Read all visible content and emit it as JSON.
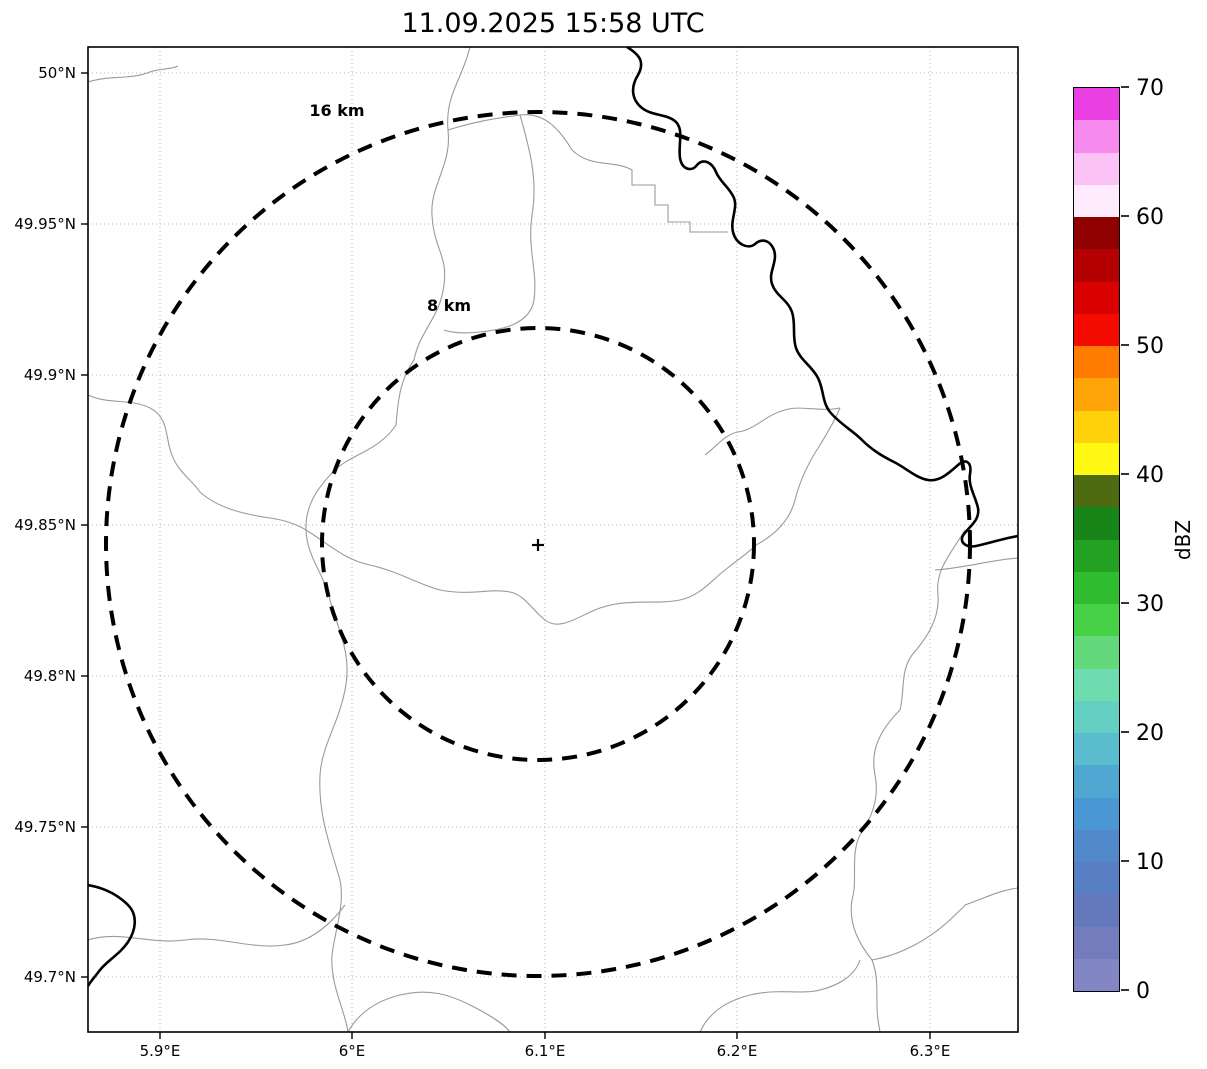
{
  "title": "11.09.2025 15:58 UTC",
  "axes": {
    "y_ticks": [
      "50°N",
      "49.95°N",
      "49.9°N",
      "49.85°N",
      "49.8°N",
      "49.75°N",
      "49.7°N"
    ],
    "x_ticks": [
      "5.9°E",
      "6°E",
      "6.1°E",
      "6.2°E",
      "6.3°E"
    ]
  },
  "range_rings": [
    {
      "label": "16 km",
      "radius_km": 16
    },
    {
      "label": "8 km",
      "radius_km": 8
    }
  ],
  "center_marker": "+",
  "colorbar": {
    "label": "dBZ",
    "range": [
      0,
      70
    ],
    "ticks_top_to_bottom": [
      "70",
      "60",
      "50",
      "40",
      "30",
      "20",
      "10",
      "0"
    ],
    "colors_bottom_to_top": [
      "#8286c4",
      "#747cbe",
      "#6478bc",
      "#587ec3",
      "#5189cb",
      "#4b97d3",
      "#50a8d2",
      "#5abccd",
      "#64d0c4",
      "#6edcae",
      "#63d97c",
      "#46d146",
      "#2fbc2f",
      "#23a123",
      "#178517",
      "#4f6b12",
      "#fef813",
      "#ffd10a",
      "#ffa50a",
      "#ff7c00",
      "#f40b00",
      "#d90000",
      "#b40000",
      "#8f0000",
      "#feecfe",
      "#fbc2f6",
      "#f68aee",
      "#e93fe3"
    ]
  }
}
